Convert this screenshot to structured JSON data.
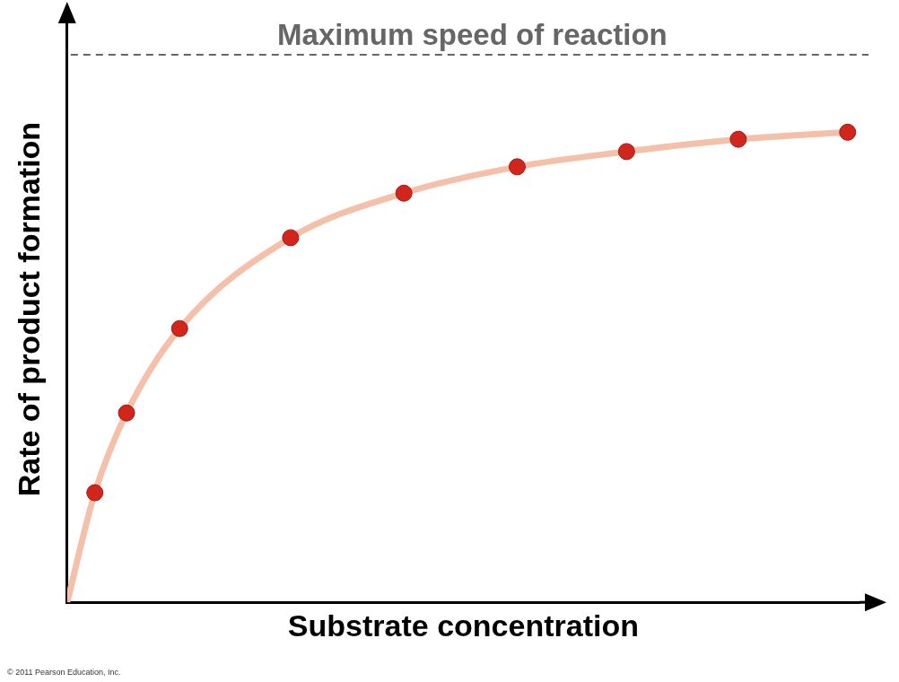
{
  "chart_data": {
    "type": "scatter",
    "x_label": "Substrate concentration",
    "y_label": "Rate of product formation",
    "xlim": [
      0,
      10
    ],
    "ylim": [
      0,
      10
    ],
    "tick_labels": false,
    "grid": false,
    "series": [
      {
        "type": "line",
        "color": "#f4c0aa",
        "line_style": "solid",
        "x": [
          0,
          0.35,
          0.75,
          1.42,
          2.82,
          4.25,
          5.68,
          7.06,
          8.47,
          9.85
        ],
        "values": [
          0,
          1.87,
          3.23,
          4.67,
          6.22,
          6.98,
          7.43,
          7.69,
          7.9,
          8.02
        ]
      },
      {
        "type": "scatter",
        "color": "#d2261c",
        "marker": "circle",
        "x": [
          0.35,
          0.75,
          1.42,
          2.82,
          4.25,
          5.68,
          7.06,
          8.47,
          9.85
        ],
        "values": [
          1.87,
          3.23,
          4.67,
          6.22,
          6.98,
          7.43,
          7.69,
          7.9,
          8.02
        ]
      }
    ],
    "annotations": [
      {
        "text": "Maximum speed of reaction",
        "y": 9.34,
        "line_style": "dashed",
        "color": "#666666"
      }
    ],
    "credit": "© 2011 Pearson Education, Inc."
  }
}
